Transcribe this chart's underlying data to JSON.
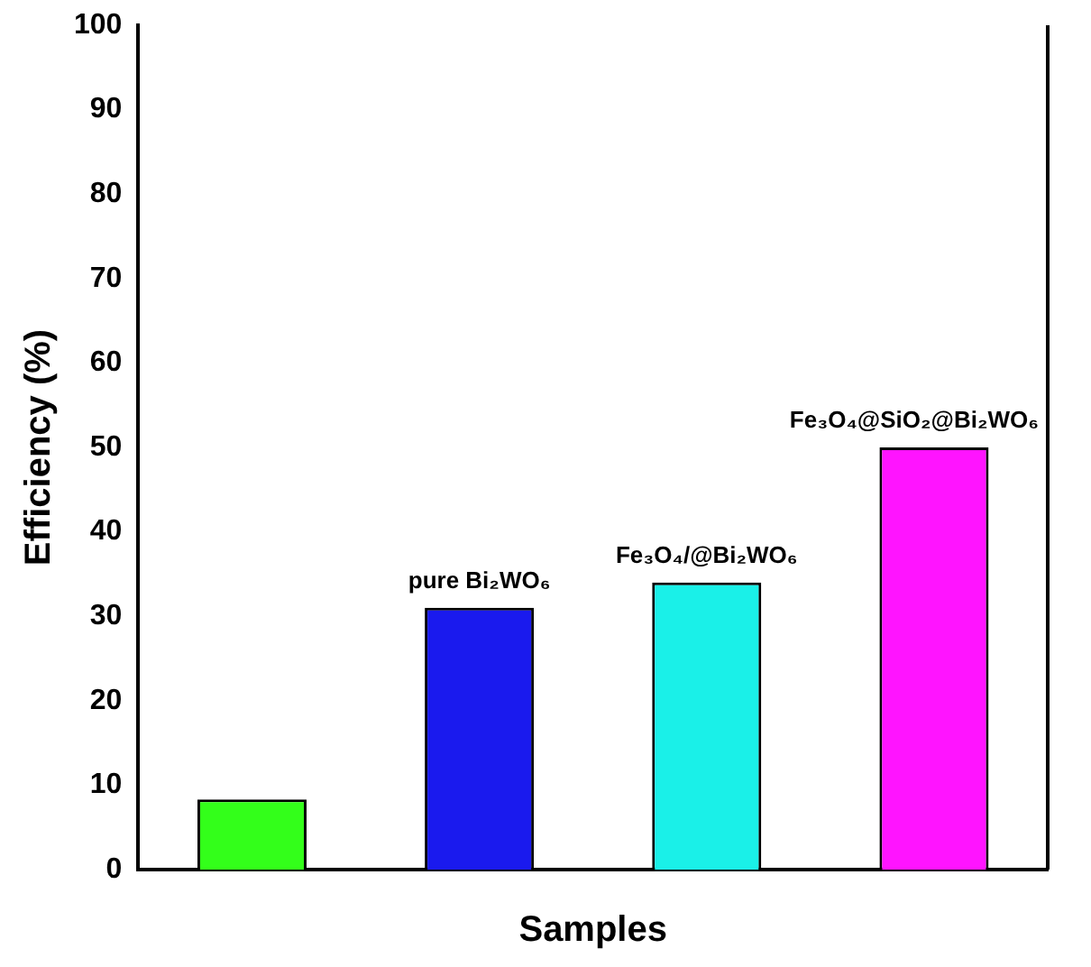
{
  "chart_data": {
    "type": "bar",
    "xlabel": "Samples",
    "ylabel": "Efficiency (%)",
    "categories": [
      null,
      "pure Bi₂WO₆",
      "Fe₃O₄/@Bi₂WO₆",
      "Fe₃O₄@SiO₂@Bi₂WO₆"
    ],
    "values": [
      8.3,
      31,
      34,
      50
    ],
    "colors": [
      "#33ff1a",
      "#1a1aee",
      "#1af0e8",
      "#ff14ff"
    ],
    "ylim": [
      0,
      100
    ],
    "yticks": [
      0,
      10,
      20,
      30,
      40,
      50,
      60,
      70,
      80,
      90,
      100
    ],
    "tick_labels": "y",
    "grid": false,
    "legend": false
  }
}
